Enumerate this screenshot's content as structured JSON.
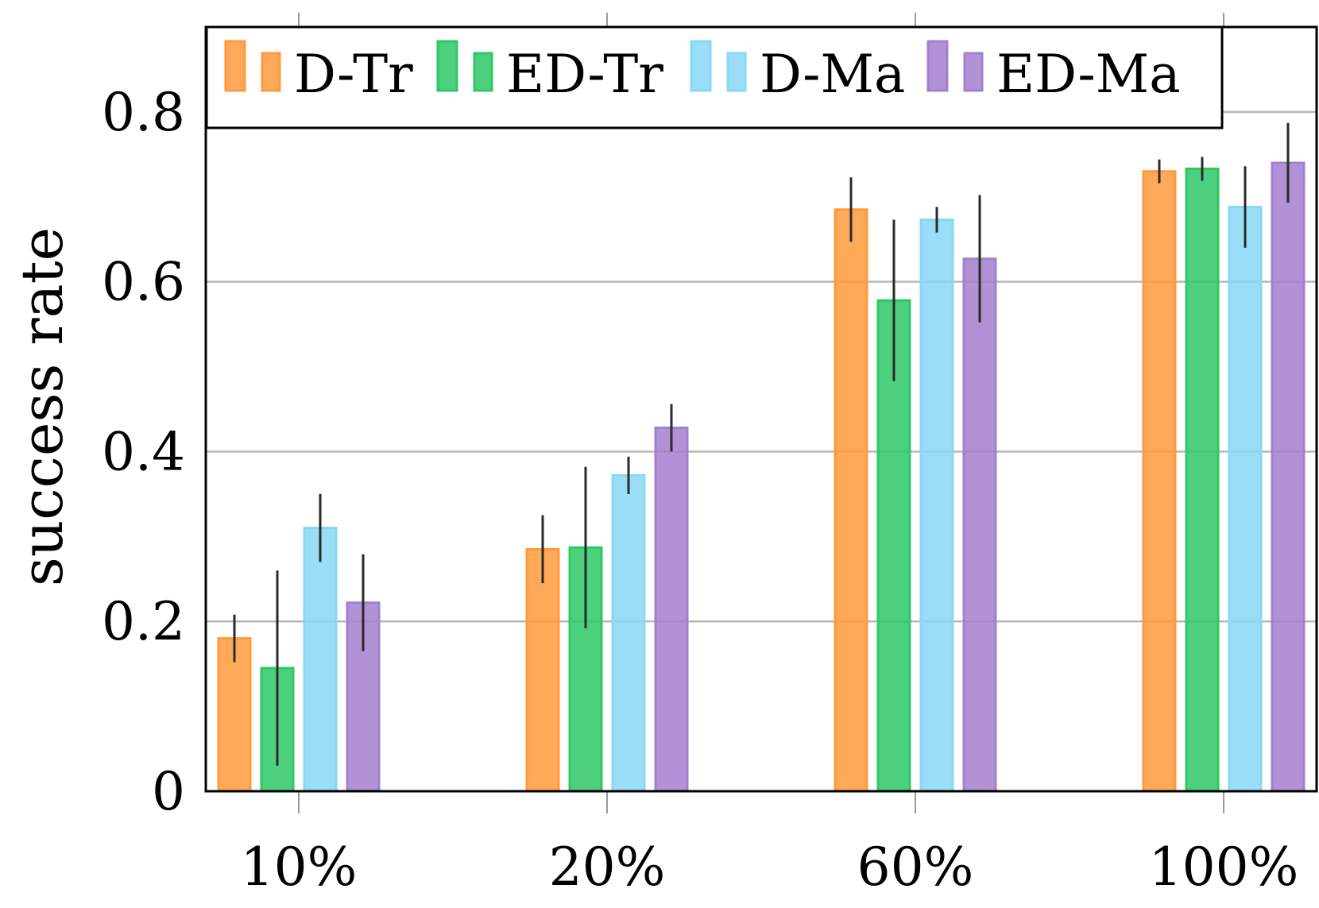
{
  "chart_data": {
    "type": "bar",
    "title": "",
    "xlabel": "",
    "ylabel": "success rate",
    "categories": [
      "10%",
      "20%",
      "60%",
      "100%"
    ],
    "ylim": [
      0,
      0.9
    ],
    "yticks": [
      0,
      0.2,
      0.4,
      0.6,
      0.8
    ],
    "ytick_labels": [
      "0",
      "0.2",
      "0.4",
      "0.6",
      "0.8"
    ],
    "grid": "horizontal",
    "legend_position": "top",
    "series": [
      {
        "name": "D-Tr",
        "color": "#ff9a3c",
        "values": [
          0.18,
          0.285,
          0.685,
          0.73
        ],
        "errors": [
          0.028,
          0.04,
          0.038,
          0.014
        ]
      },
      {
        "name": "ED-Tr",
        "color": "#2ec866",
        "values": [
          0.145,
          0.287,
          0.578,
          0.733
        ],
        "errors": [
          0.115,
          0.095,
          0.095,
          0.014
        ]
      },
      {
        "name": "D-Ma",
        "color": "#87d8f5",
        "values": [
          0.31,
          0.372,
          0.673,
          0.688
        ],
        "errors": [
          0.04,
          0.022,
          0.015,
          0.048
        ]
      },
      {
        "name": "ED-Ma",
        "color": "#a37fcf",
        "values": [
          0.222,
          0.428,
          0.627,
          0.74
        ],
        "errors": [
          0.057,
          0.028,
          0.075,
          0.047
        ]
      }
    ]
  }
}
